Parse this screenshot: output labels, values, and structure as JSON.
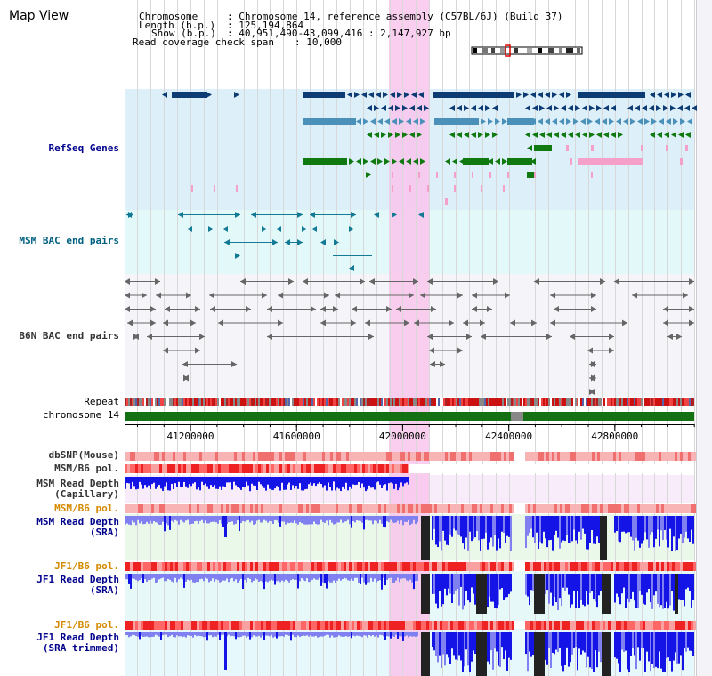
{
  "view_title": "Map View",
  "info": {
    "chromosome_label": "Chromosome",
    "chromosome_value": ": Chromosome 14, reference assembly (C57BL/6J) (Build 37)",
    "length_label": "Length (b.p.)",
    "length_value": ": 125,194,864",
    "show_label": "Show (b.p.)",
    "show_value": ": 40,951,490-43,099,416 : 2,147,927 bp",
    "coverage_label": "Read coverage check span",
    "coverage_value": ": 10,000"
  },
  "tracks": {
    "refseq": "RefSeq Genes",
    "msm_bac": "MSM BAC end pairs",
    "b6n_bac": "B6N BAC end pairs",
    "repeat": "Repeat",
    "chromosome": "chromosome 14",
    "dbsnp": "dbSNP(Mouse)",
    "msm_b6_pol_1": "MSM/B6 pol.",
    "msm_read_depth_cap_1": "MSM Read Depth",
    "msm_read_depth_cap_2": "(Capillary)",
    "msm_b6_pol_2": "MSM/B6 pol.",
    "msm_read_depth_sra_1": "MSM Read Depth",
    "msm_read_depth_sra_2": "(SRA)",
    "jf1_b6_pol_1": "JF1/B6 pol.",
    "jf1_read_depth_sra_1": "JF1 Read Depth",
    "jf1_read_depth_sra_2": "(SRA)",
    "jf1_b6_pol_2": "JF1/B6 pol.",
    "jf1_read_depth_trim_1": "JF1 Read Depth",
    "jf1_read_depth_trim_2": "(SRA trimmed)"
  },
  "axis": {
    "ticks": [
      "41200000",
      "41600000",
      "42000000",
      "42400000",
      "42800000"
    ],
    "tick_values": [
      41200000,
      41600000,
      42000000,
      42400000,
      42800000
    ],
    "range": [
      40951490,
      43099416
    ]
  },
  "highlight_range": [
    41950000,
    42100000
  ],
  "colors": {
    "refseq_bg": "#ddf0fa",
    "msm_bac_bg": "#e3f9f9",
    "b6n_bac_bg": "#f4f4f9",
    "highlight": "#f9c6ec",
    "gene_navy": "#0d3b73",
    "gene_teal": "#4a90b8",
    "gene_green": "#107a10",
    "gene_pink": "#f5a0c8",
    "msm_bac_color": "#137a96",
    "bac_gray": "#666666",
    "chromosome_bar": "#137013",
    "depth_blue": "#1414e6",
    "depth_light": "#8080f0",
    "label_blue": "#00008c",
    "label_gray": "#333333",
    "label_orange": "#d48a00",
    "label_teal": "#006080"
  },
  "icons": {
    "ideogram": "chromosome-ideogram-icon"
  }
}
